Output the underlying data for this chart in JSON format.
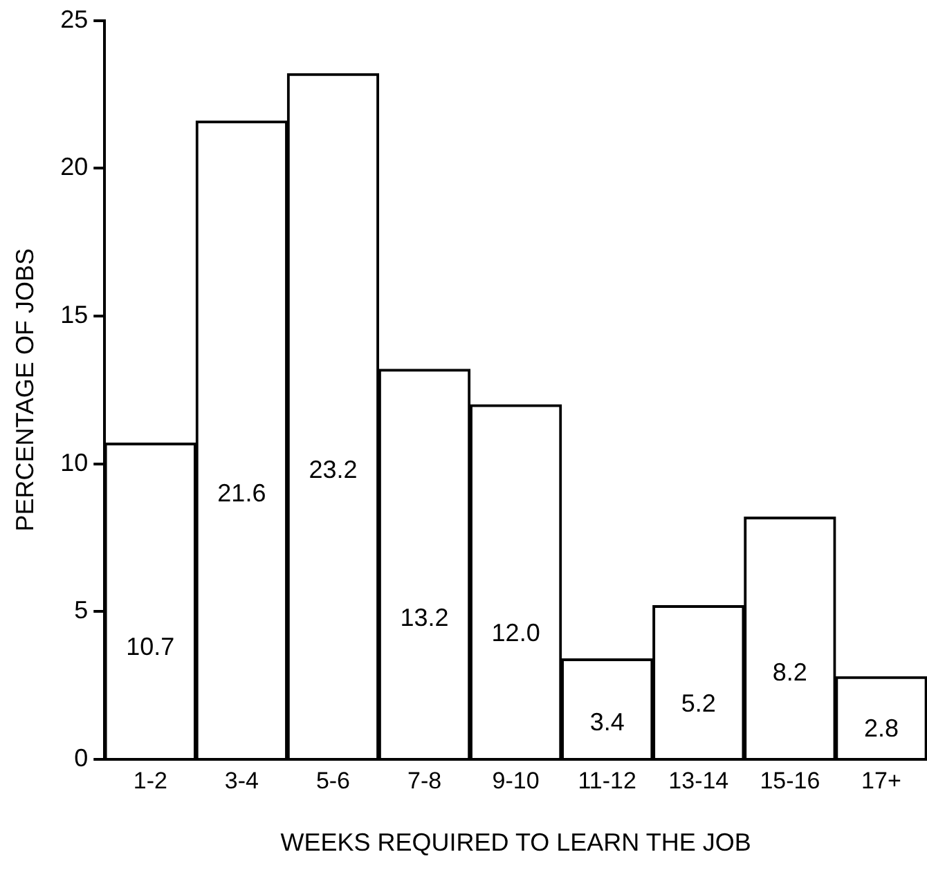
{
  "chart_data": {
    "type": "bar",
    "xlabel": "WEEKS REQUIRED TO LEARN THE JOB",
    "ylabel": "PERCENTAGE OF JOBS",
    "categories": [
      "1-2",
      "3-4",
      "5-6",
      "7-8",
      "9-10",
      "11-12",
      "13-14",
      "15-16",
      "17+"
    ],
    "values": [
      10.7,
      21.6,
      23.2,
      13.2,
      12.0,
      3.4,
      5.2,
      8.2,
      2.8
    ],
    "color": "#ffffff",
    "value_labels": [
      "10.7",
      "21.6",
      "23.2",
      "13.2",
      "12.0",
      "3.4",
      "5.2",
      "8.2",
      "2.8"
    ],
    "ylim": [
      0,
      25
    ],
    "yticks": [
      0,
      5,
      10,
      15,
      20,
      25
    ],
    "grid": false,
    "legend": false
  }
}
